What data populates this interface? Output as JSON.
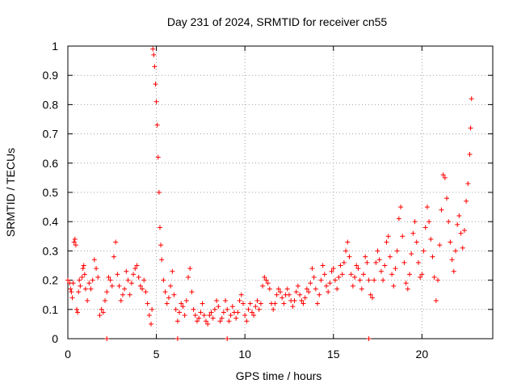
{
  "chart_data": {
    "type": "scatter",
    "title": "Day 231 of 2024, SRMTID for receiver cn55",
    "xlabel": "GPS time / hours",
    "ylabel": "SRMTID / TECUs",
    "xlim": [
      0,
      24
    ],
    "ylim": [
      0,
      1
    ],
    "xticks": [
      0,
      5,
      10,
      15,
      20
    ],
    "xtick_labels": [
      "0",
      "5",
      "10",
      "15",
      "20"
    ],
    "yticks": [
      0,
      0.1,
      0.2,
      0.3,
      0.4,
      0.5,
      0.6,
      0.7,
      0.8,
      0.9,
      1
    ],
    "ytick_labels": [
      "0",
      "0.1",
      "0.2",
      "0.3",
      "0.4",
      "0.5",
      "0.6",
      "0.7",
      "0.8",
      "0.9",
      "1"
    ],
    "grid": true,
    "marker": "+",
    "color": "#ff0000",
    "series": [
      {
        "name": "SRMTID",
        "points": [
          [
            0.0,
            0.2
          ],
          [
            0.1,
            0.19
          ],
          [
            0.15,
            0.17
          ],
          [
            0.2,
            0.16
          ],
          [
            0.25,
            0.14
          ],
          [
            0.3,
            0.19
          ],
          [
            0.35,
            0.33
          ],
          [
            0.4,
            0.34
          ],
          [
            0.45,
            0.32
          ],
          [
            0.5,
            0.1
          ],
          [
            0.55,
            0.09
          ],
          [
            0.6,
            0.16
          ],
          [
            0.65,
            0.2
          ],
          [
            0.7,
            0.18
          ],
          [
            0.8,
            0.21
          ],
          [
            0.85,
            0.24
          ],
          [
            0.9,
            0.25
          ],
          [
            0.95,
            0.22
          ],
          [
            1.0,
            0.17
          ],
          [
            1.1,
            0.13
          ],
          [
            1.2,
            0.19
          ],
          [
            1.3,
            0.17
          ],
          [
            1.4,
            0.2
          ],
          [
            1.5,
            0.27
          ],
          [
            1.6,
            0.24
          ],
          [
            1.7,
            0.21
          ],
          [
            1.8,
            0.08
          ],
          [
            1.9,
            0.1
          ],
          [
            2.0,
            0.09
          ],
          [
            2.1,
            0.13
          ],
          [
            2.2,
            0.16
          ],
          [
            2.3,
            0.21
          ],
          [
            2.4,
            0.2
          ],
          [
            2.5,
            0.18
          ],
          [
            2.6,
            0.28
          ],
          [
            2.7,
            0.33
          ],
          [
            2.8,
            0.22
          ],
          [
            2.9,
            0.18
          ],
          [
            3.0,
            0.13
          ],
          [
            3.1,
            0.15
          ],
          [
            3.2,
            0.17
          ],
          [
            3.3,
            0.23
          ],
          [
            3.4,
            0.2
          ],
          [
            3.5,
            0.15
          ],
          [
            3.6,
            0.19
          ],
          [
            3.7,
            0.22
          ],
          [
            3.8,
            0.24
          ],
          [
            3.9,
            0.25
          ],
          [
            4.0,
            0.21
          ],
          [
            4.1,
            0.18
          ],
          [
            4.2,
            0.17
          ],
          [
            4.3,
            0.2
          ],
          [
            4.4,
            0.16
          ],
          [
            4.5,
            0.12
          ],
          [
            4.6,
            0.08
          ],
          [
            4.7,
            0.05
          ],
          [
            4.75,
            0.1
          ],
          [
            4.8,
            0.99
          ],
          [
            4.85,
            0.97
          ],
          [
            4.9,
            0.93
          ],
          [
            4.95,
            0.87
          ],
          [
            5.0,
            0.81
          ],
          [
            5.05,
            0.73
          ],
          [
            5.1,
            0.62
          ],
          [
            5.15,
            0.5
          ],
          [
            5.2,
            0.38
          ],
          [
            5.25,
            0.32
          ],
          [
            5.3,
            0.27
          ],
          [
            5.4,
            0.2
          ],
          [
            5.5,
            0.16
          ],
          [
            5.6,
            0.12
          ],
          [
            5.7,
            0.14
          ],
          [
            5.8,
            0.18
          ],
          [
            5.9,
            0.23
          ],
          [
            6.0,
            0.15
          ],
          [
            6.1,
            0.1
          ],
          [
            6.2,
            0.06
          ],
          [
            6.3,
            0.09
          ],
          [
            6.4,
            0.12
          ],
          [
            6.5,
            0.11
          ],
          [
            6.6,
            0.08
          ],
          [
            6.7,
            0.13
          ],
          [
            6.8,
            0.21
          ],
          [
            6.9,
            0.24
          ],
          [
            7.0,
            0.16
          ],
          [
            7.1,
            0.1
          ],
          [
            7.2,
            0.08
          ],
          [
            7.3,
            0.06
          ],
          [
            7.4,
            0.07
          ],
          [
            7.5,
            0.09
          ],
          [
            7.6,
            0.12
          ],
          [
            7.7,
            0.08
          ],
          [
            7.8,
            0.06
          ],
          [
            7.9,
            0.05
          ],
          [
            8.0,
            0.08
          ],
          [
            8.1,
            0.09
          ],
          [
            8.2,
            0.07
          ],
          [
            8.3,
            0.1
          ],
          [
            8.4,
            0.13
          ],
          [
            8.5,
            0.11
          ],
          [
            8.6,
            0.06
          ],
          [
            8.7,
            0.07
          ],
          [
            8.8,
            0.09
          ],
          [
            8.9,
            0.13
          ],
          [
            9.0,
            0.1
          ],
          [
            9.1,
            0.06
          ],
          [
            9.2,
            0.08
          ],
          [
            9.3,
            0.11
          ],
          [
            9.4,
            0.09
          ],
          [
            9.5,
            0.07
          ],
          [
            9.6,
            0.09
          ],
          [
            9.7,
            0.13
          ],
          [
            9.8,
            0.15
          ],
          [
            9.9,
            0.12
          ],
          [
            10.0,
            0.08
          ],
          [
            10.1,
            0.06
          ],
          [
            10.2,
            0.1
          ],
          [
            10.3,
            0.12
          ],
          [
            10.4,
            0.09
          ],
          [
            10.5,
            0.08
          ],
          [
            10.6,
            0.11
          ],
          [
            10.7,
            0.13
          ],
          [
            10.8,
            0.1
          ],
          [
            10.9,
            0.12
          ],
          [
            11.0,
            0.18
          ],
          [
            11.1,
            0.21
          ],
          [
            11.2,
            0.2
          ],
          [
            11.3,
            0.19
          ],
          [
            11.4,
            0.17
          ],
          [
            11.5,
            0.12
          ],
          [
            11.6,
            0.1
          ],
          [
            11.7,
            0.12
          ],
          [
            11.8,
            0.15
          ],
          [
            11.9,
            0.17
          ],
          [
            12.0,
            0.16
          ],
          [
            12.1,
            0.14
          ],
          [
            12.2,
            0.12
          ],
          [
            12.3,
            0.15
          ],
          [
            12.4,
            0.17
          ],
          [
            12.5,
            0.15
          ],
          [
            12.6,
            0.13
          ],
          [
            12.7,
            0.11
          ],
          [
            12.8,
            0.13
          ],
          [
            12.9,
            0.16
          ],
          [
            13.0,
            0.18
          ],
          [
            13.1,
            0.15
          ],
          [
            13.2,
            0.13
          ],
          [
            13.3,
            0.12
          ],
          [
            13.4,
            0.14
          ],
          [
            13.5,
            0.17
          ],
          [
            13.6,
            0.16
          ],
          [
            13.7,
            0.19
          ],
          [
            13.8,
            0.24
          ],
          [
            13.9,
            0.21
          ],
          [
            14.0,
            0.17
          ],
          [
            14.1,
            0.12
          ],
          [
            14.2,
            0.15
          ],
          [
            14.3,
            0.2
          ],
          [
            14.4,
            0.25
          ],
          [
            14.5,
            0.22
          ],
          [
            14.6,
            0.18
          ],
          [
            14.7,
            0.16
          ],
          [
            14.8,
            0.19
          ],
          [
            14.9,
            0.23
          ],
          [
            15.0,
            0.24
          ],
          [
            15.1,
            0.2
          ],
          [
            15.2,
            0.17
          ],
          [
            15.3,
            0.21
          ],
          [
            15.4,
            0.25
          ],
          [
            15.5,
            0.22
          ],
          [
            15.6,
            0.26
          ],
          [
            15.7,
            0.3
          ],
          [
            15.8,
            0.33
          ],
          [
            15.9,
            0.28
          ],
          [
            16.0,
            0.22
          ],
          [
            16.1,
            0.18
          ],
          [
            16.2,
            0.21
          ],
          [
            16.3,
            0.25
          ],
          [
            16.4,
            0.24
          ],
          [
            16.5,
            0.2
          ],
          [
            16.6,
            0.17
          ],
          [
            16.7,
            0.22
          ],
          [
            16.8,
            0.28
          ],
          [
            16.9,
            0.26
          ],
          [
            17.0,
            0.2
          ],
          [
            17.1,
            0.15
          ],
          [
            17.2,
            0.14
          ],
          [
            17.3,
            0.2
          ],
          [
            17.4,
            0.26
          ],
          [
            17.5,
            0.3
          ],
          [
            17.6,
            0.27
          ],
          [
            17.7,
            0.23
          ],
          [
            17.8,
            0.2
          ],
          [
            17.9,
            0.25
          ],
          [
            18.0,
            0.33
          ],
          [
            18.1,
            0.35
          ],
          [
            18.2,
            0.28
          ],
          [
            18.3,
            0.22
          ],
          [
            18.4,
            0.18
          ],
          [
            18.5,
            0.24
          ],
          [
            18.6,
            0.3
          ],
          [
            18.7,
            0.41
          ],
          [
            18.8,
            0.45
          ],
          [
            18.9,
            0.35
          ],
          [
            19.0,
            0.26
          ],
          [
            19.1,
            0.19
          ],
          [
            19.2,
            0.17
          ],
          [
            19.3,
            0.22
          ],
          [
            19.4,
            0.29
          ],
          [
            19.5,
            0.36
          ],
          [
            19.6,
            0.4
          ],
          [
            19.7,
            0.33
          ],
          [
            19.8,
            0.26
          ],
          [
            19.9,
            0.21
          ],
          [
            20.0,
            0.22
          ],
          [
            20.1,
            0.3
          ],
          [
            20.2,
            0.38
          ],
          [
            20.3,
            0.45
          ],
          [
            20.4,
            0.4
          ],
          [
            20.5,
            0.34
          ],
          [
            20.6,
            0.28
          ],
          [
            20.7,
            0.21
          ],
          [
            20.8,
            0.13
          ],
          [
            20.9,
            0.2
          ],
          [
            21.0,
            0.32
          ],
          [
            21.1,
            0.44
          ],
          [
            21.2,
            0.56
          ],
          [
            21.3,
            0.55
          ],
          [
            21.4,
            0.48
          ],
          [
            21.5,
            0.4
          ],
          [
            21.6,
            0.33
          ],
          [
            21.7,
            0.27
          ],
          [
            21.8,
            0.23
          ],
          [
            21.9,
            0.3
          ],
          [
            22.0,
            0.39
          ],
          [
            22.1,
            0.42
          ],
          [
            22.2,
            0.36
          ],
          [
            22.3,
            0.31
          ],
          [
            22.4,
            0.37
          ],
          [
            22.5,
            0.47
          ],
          [
            22.6,
            0.53
          ],
          [
            22.7,
            0.63
          ],
          [
            22.75,
            0.72
          ],
          [
            22.8,
            0.82
          ],
          [
            2.2,
            0.0
          ],
          [
            17.0,
            0.0
          ],
          [
            6.2,
            0.0
          ],
          [
            9.0,
            0.0
          ]
        ]
      }
    ]
  }
}
